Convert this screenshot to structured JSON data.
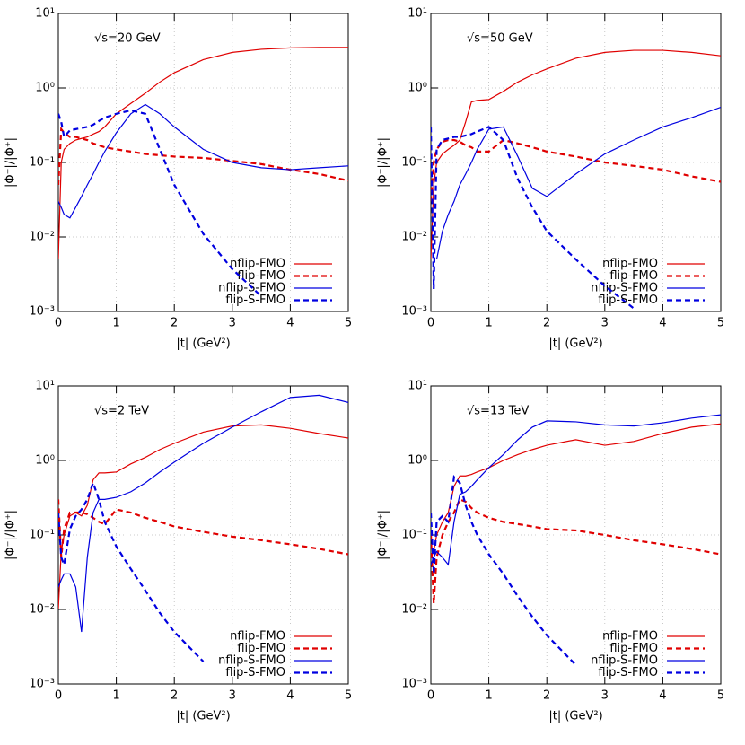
{
  "chart_data": [
    {
      "type": "line",
      "annotation": "√s=20 GeV",
      "xlabel": "|t| (GeV²)",
      "ylabel": "|Φ⁻|/|Φ⁺|",
      "log_y": true,
      "grid": true,
      "legend": "lower right",
      "xlim": [
        0,
        5
      ],
      "xticks": [
        0,
        1,
        2,
        3,
        4,
        5
      ],
      "ylim": [
        0.001,
        10
      ],
      "yticks": [
        {
          "value": 0.001,
          "label": "10⁻³"
        },
        {
          "value": 0.01,
          "label": "10⁻²"
        },
        {
          "value": 0.1,
          "label": "10⁻¹"
        },
        {
          "value": 1,
          "label": "10⁰"
        },
        {
          "value": 10,
          "label": "10¹"
        }
      ],
      "x": [
        0,
        0.05,
        0.1,
        0.2,
        0.3,
        0.4,
        0.5,
        0.6,
        0.7,
        0.8,
        1,
        1.25,
        1.5,
        1.75,
        2,
        2.5,
        3,
        3.5,
        4,
        4.5,
        5
      ],
      "series": [
        {
          "name": "nflip-FMO",
          "color": "#e00000",
          "dashed": false,
          "values": [
            0.005,
            0.1,
            0.15,
            0.18,
            0.2,
            0.21,
            0.22,
            0.24,
            0.26,
            0.3,
            0.45,
            0.62,
            0.85,
            1.2,
            1.6,
            2.4,
            3.0,
            3.3,
            3.45,
            3.5,
            3.5
          ]
        },
        {
          "name": "flip-FMO",
          "color": "#e00000",
          "dashed": true,
          "values": [
            0.05,
            0.28,
            0.25,
            0.22,
            0.22,
            0.21,
            0.2,
            0.18,
            0.17,
            0.16,
            0.15,
            0.14,
            0.13,
            0.125,
            0.12,
            0.115,
            0.105,
            0.095,
            0.08,
            0.07,
            0.057
          ]
        },
        {
          "name": "nflip-S-FMO",
          "color": "#0000e0",
          "dashed": false,
          "values": [
            0.03,
            0.025,
            0.02,
            0.018,
            0.025,
            0.035,
            0.05,
            0.07,
            0.1,
            0.14,
            0.25,
            0.45,
            0.6,
            0.45,
            0.3,
            0.15,
            0.1,
            0.085,
            0.08,
            0.085,
            0.09
          ]
        },
        {
          "name": "flip-S-FMO",
          "color": "#0000e0",
          "dashed": true,
          "values": [
            0.45,
            0.35,
            0.22,
            0.27,
            0.28,
            0.29,
            0.3,
            0.32,
            0.36,
            0.4,
            0.45,
            0.5,
            0.45,
            0.15,
            0.05,
            0.011,
            0.0037,
            0.0016,
            null,
            null,
            null
          ]
        }
      ]
    },
    {
      "type": "line",
      "annotation": "√s=50 GeV",
      "xlabel": "|t| (GeV²)",
      "ylabel": "|Φ⁻|/|Φ⁺|",
      "log_y": true,
      "grid": true,
      "legend": "lower right",
      "xlim": [
        0,
        5
      ],
      "xticks": [
        0,
        1,
        2,
        3,
        4,
        5
      ],
      "ylim": [
        0.001,
        10
      ],
      "yticks": [
        {
          "value": 0.001,
          "label": "10⁻³"
        },
        {
          "value": 0.01,
          "label": "10⁻²"
        },
        {
          "value": 0.1,
          "label": "10⁻¹"
        },
        {
          "value": 1,
          "label": "10⁰"
        },
        {
          "value": 10,
          "label": "10¹"
        }
      ],
      "x": [
        0,
        0.05,
        0.1,
        0.2,
        0.3,
        0.4,
        0.5,
        0.6,
        0.7,
        0.8,
        1,
        1.25,
        1.5,
        1.75,
        2,
        2.5,
        3,
        3.5,
        4,
        4.5,
        5
      ],
      "series": [
        {
          "name": "nflip-FMO",
          "color": "#e00000",
          "dashed": false,
          "values": [
            0.005,
            0.05,
            0.1,
            0.13,
            0.15,
            0.17,
            0.2,
            0.35,
            0.65,
            0.68,
            0.7,
            0.9,
            1.2,
            1.5,
            1.8,
            2.5,
            3.0,
            3.2,
            3.2,
            3.0,
            2.7
          ]
        },
        {
          "name": "flip-FMO",
          "color": "#e00000",
          "dashed": true,
          "values": [
            0.03,
            0.1,
            0.15,
            0.19,
            0.2,
            0.2,
            0.19,
            0.17,
            0.16,
            0.14,
            0.14,
            0.2,
            0.18,
            0.16,
            0.14,
            0.12,
            0.1,
            0.09,
            0.08,
            0.065,
            0.055
          ]
        },
        {
          "name": "nflip-S-FMO",
          "color": "#0000e0",
          "dashed": false,
          "values": [
            0.08,
            null,
            0.005,
            0.012,
            0.02,
            0.03,
            0.05,
            0.07,
            0.1,
            0.15,
            0.28,
            0.3,
            0.12,
            0.045,
            0.035,
            0.07,
            0.13,
            0.2,
            0.3,
            0.4,
            0.55
          ]
        },
        {
          "name": "flip-S-FMO",
          "color": "#0000e0",
          "dashed": true,
          "values": [
            0.3,
            0.002,
            0.15,
            0.2,
            0.21,
            0.22,
            0.22,
            0.23,
            0.24,
            0.26,
            0.3,
            0.2,
            0.06,
            0.025,
            0.012,
            0.005,
            0.0022,
            0.0011,
            null,
            null,
            null
          ]
        }
      ]
    },
    {
      "type": "line",
      "annotation": "√s=2 TeV",
      "xlabel": "|t| (GeV²)",
      "ylabel": "|Φ⁻|/|Φ⁺|",
      "log_y": true,
      "grid": true,
      "legend": "lower right",
      "xlim": [
        0,
        5
      ],
      "xticks": [
        0,
        1,
        2,
        3,
        4,
        5
      ],
      "ylim": [
        0.001,
        10
      ],
      "yticks": [
        {
          "value": 0.001,
          "label": "10⁻³"
        },
        {
          "value": 0.01,
          "label": "10⁻²"
        },
        {
          "value": 0.1,
          "label": "10⁻¹"
        },
        {
          "value": 1,
          "label": "10⁰"
        },
        {
          "value": 10,
          "label": "10¹"
        }
      ],
      "x": [
        0,
        0.05,
        0.1,
        0.2,
        0.3,
        0.4,
        0.5,
        0.6,
        0.7,
        0.8,
        1,
        1.25,
        1.5,
        1.75,
        2,
        2.5,
        3,
        3.5,
        4,
        4.5,
        5
      ],
      "series": [
        {
          "name": "nflip-FMO",
          "color": "#e00000",
          "dashed": false,
          "values": [
            0.01,
            0.06,
            0.1,
            0.18,
            0.2,
            0.18,
            0.25,
            0.55,
            0.68,
            0.68,
            0.7,
            0.9,
            1.1,
            1.4,
            1.7,
            2.4,
            2.9,
            3.0,
            2.7,
            2.3,
            2.0
          ]
        },
        {
          "name": "flip-FMO",
          "color": "#e00000",
          "dashed": true,
          "values": [
            0.3,
            0.05,
            0.12,
            0.2,
            0.2,
            0.2,
            0.19,
            0.17,
            0.15,
            0.14,
            0.22,
            0.2,
            0.17,
            0.15,
            0.13,
            0.11,
            0.095,
            0.085,
            0.075,
            0.065,
            0.055
          ]
        },
        {
          "name": "nflip-S-FMO",
          "color": "#0000e0",
          "dashed": false,
          "values": [
            0.02,
            0.025,
            0.03,
            0.03,
            0.02,
            0.005,
            0.05,
            0.2,
            0.3,
            0.3,
            0.32,
            0.38,
            0.5,
            0.7,
            0.95,
            1.7,
            2.8,
            4.5,
            7,
            7.5,
            6
          ]
        },
        {
          "name": "flip-S-FMO",
          "color": "#0000e0",
          "dashed": true,
          "values": [
            0.2,
            0.05,
            0.04,
            0.12,
            0.18,
            0.22,
            0.3,
            0.5,
            0.3,
            0.15,
            0.07,
            0.035,
            0.018,
            0.009,
            0.005,
            0.002,
            null,
            null,
            null,
            null,
            null
          ]
        }
      ]
    },
    {
      "type": "line",
      "annotation": "√s=13 TeV",
      "xlabel": "|t| (GeV²)",
      "ylabel": "|Φ⁻|/|Φ⁺|",
      "log_y": true,
      "grid": true,
      "legend": "lower right",
      "xlim": [
        0,
        5
      ],
      "xticks": [
        0,
        1,
        2,
        3,
        4,
        5
      ],
      "ylim": [
        0.001,
        10
      ],
      "yticks": [
        {
          "value": 0.001,
          "label": "10⁻³"
        },
        {
          "value": 0.01,
          "label": "10⁻²"
        },
        {
          "value": 0.1,
          "label": "10⁻¹"
        },
        {
          "value": 1,
          "label": "10⁰"
        },
        {
          "value": 10,
          "label": "10¹"
        }
      ],
      "x": [
        0,
        0.05,
        0.1,
        0.2,
        0.3,
        0.4,
        0.5,
        0.6,
        0.7,
        0.8,
        1,
        1.25,
        1.5,
        1.75,
        2,
        2.5,
        3,
        3.5,
        4,
        4.5,
        5
      ],
      "series": [
        {
          "name": "nflip-FMO",
          "color": "#e00000",
          "dashed": false,
          "values": [
            0.05,
            0.06,
            0.1,
            0.15,
            0.2,
            0.45,
            0.62,
            0.62,
            0.65,
            0.7,
            0.8,
            1.0,
            1.2,
            1.4,
            1.6,
            1.9,
            1.6,
            1.8,
            2.3,
            2.8,
            3.1
          ]
        },
        {
          "name": "flip-FMO",
          "color": "#e00000",
          "dashed": true,
          "values": [
            0.1,
            0.012,
            0.05,
            0.1,
            0.15,
            0.2,
            0.3,
            0.28,
            0.23,
            0.2,
            0.17,
            0.15,
            0.14,
            0.13,
            0.12,
            0.115,
            0.1,
            0.085,
            0.075,
            0.065,
            0.055
          ]
        },
        {
          "name": "nflip-S-FMO",
          "color": "#0000e0",
          "dashed": false,
          "values": [
            0.04,
            0.05,
            0.06,
            0.05,
            0.04,
            0.15,
            0.35,
            0.38,
            0.45,
            0.55,
            0.8,
            1.2,
            1.9,
            2.8,
            3.4,
            3.3,
            3.0,
            2.9,
            3.2,
            3.7,
            4.1
          ]
        },
        {
          "name": "flip-S-FMO",
          "color": "#0000e0",
          "dashed": true,
          "values": [
            0.2,
            0.03,
            0.15,
            0.18,
            0.15,
            0.6,
            0.5,
            0.25,
            0.15,
            0.1,
            0.055,
            0.03,
            0.015,
            0.008,
            0.0045,
            0.0018,
            null,
            null,
            null,
            null,
            null
          ]
        }
      ]
    }
  ]
}
